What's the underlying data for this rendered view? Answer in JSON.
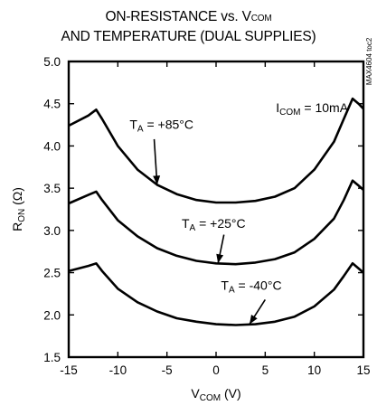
{
  "title": {
    "line1_main": "ON-RESISTANCE vs. V",
    "line1_sub": "COM",
    "line2": "AND TEMPERATURE (DUAL SUPPLIES)"
  },
  "watermark": "MAX4604 toc2",
  "chart_data": {
    "type": "line",
    "xlabel": {
      "main": "V",
      "sub": "COM",
      "unit": " (V)"
    },
    "ylabel": {
      "main": "R",
      "sub": "ON",
      "unit": " (Ω)"
    },
    "xlim": [
      -15,
      15
    ],
    "ylim": [
      1.5,
      5.0
    ],
    "xticks": [
      -15,
      -10,
      -5,
      0,
      5,
      10,
      15
    ],
    "yticks": [
      1.5,
      2.0,
      2.5,
      3.0,
      3.5,
      4.0,
      4.5,
      5.0
    ],
    "ytick_labels": [
      "1.5",
      "2.0",
      "2.5",
      "3.0",
      "3.5",
      "4.0",
      "4.5",
      "5.0"
    ],
    "grid": false,
    "condition": {
      "main": "I",
      "sub": "COM",
      "rest": " = 10mA"
    },
    "series": [
      {
        "name_main": "T",
        "name_sub": "A",
        "name_rest": " = +85°C",
        "points": [
          [
            -15,
            4.24
          ],
          [
            -13,
            4.36
          ],
          [
            -12.2,
            4.43
          ],
          [
            -11.6,
            4.32
          ],
          [
            -10,
            4.0
          ],
          [
            -8,
            3.72
          ],
          [
            -6,
            3.54
          ],
          [
            -4,
            3.43
          ],
          [
            -2,
            3.36
          ],
          [
            0,
            3.33
          ],
          [
            2,
            3.33
          ],
          [
            4,
            3.35
          ],
          [
            6,
            3.4
          ],
          [
            8,
            3.5
          ],
          [
            10,
            3.72
          ],
          [
            12,
            4.05
          ],
          [
            13,
            4.32
          ],
          [
            13.9,
            4.56
          ],
          [
            14.5,
            4.5
          ],
          [
            15,
            4.44
          ]
        ]
      },
      {
        "name_main": "T",
        "name_sub": "A",
        "name_rest": " = +25°C",
        "points": [
          [
            -15,
            3.32
          ],
          [
            -13,
            3.42
          ],
          [
            -12.2,
            3.46
          ],
          [
            -11.6,
            3.36
          ],
          [
            -10,
            3.12
          ],
          [
            -8,
            2.93
          ],
          [
            -6,
            2.79
          ],
          [
            -4,
            2.7
          ],
          [
            -2,
            2.64
          ],
          [
            0,
            2.61
          ],
          [
            2,
            2.6
          ],
          [
            4,
            2.62
          ],
          [
            6,
            2.66
          ],
          [
            8,
            2.74
          ],
          [
            10,
            2.9
          ],
          [
            12,
            3.14
          ],
          [
            13,
            3.36
          ],
          [
            13.9,
            3.59
          ],
          [
            14.5,
            3.53
          ],
          [
            15,
            3.48
          ]
        ]
      },
      {
        "name_main": "T",
        "name_sub": "A",
        "name_rest": " = -40°C",
        "points": [
          [
            -15,
            2.52
          ],
          [
            -13,
            2.58
          ],
          [
            -12.2,
            2.61
          ],
          [
            -11.6,
            2.52
          ],
          [
            -10,
            2.31
          ],
          [
            -8,
            2.15
          ],
          [
            -6,
            2.04
          ],
          [
            -4,
            1.96
          ],
          [
            -2,
            1.92
          ],
          [
            0,
            1.89
          ],
          [
            2,
            1.88
          ],
          [
            4,
            1.89
          ],
          [
            6,
            1.92
          ],
          [
            8,
            1.98
          ],
          [
            10,
            2.1
          ],
          [
            12,
            2.3
          ],
          [
            13,
            2.46
          ],
          [
            13.9,
            2.61
          ],
          [
            14.5,
            2.55
          ],
          [
            15,
            2.5
          ]
        ]
      }
    ]
  }
}
